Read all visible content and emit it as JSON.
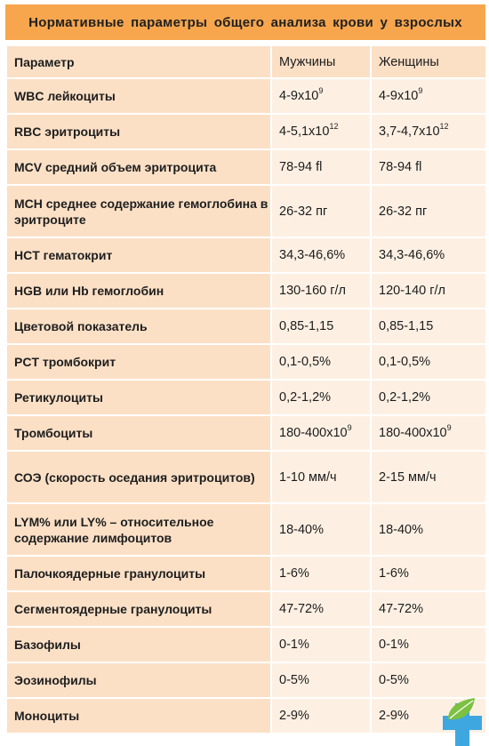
{
  "title": "Нормативные  параметры  общего анализа  крови  у взрослых",
  "headers": {
    "param": "Параметр",
    "men": "Мужчины",
    "women": "Женщины"
  },
  "rows": [
    {
      "param": "WBC лейкоциты",
      "men": "4-9x10",
      "men_sup": "9",
      "women": "4-9x10",
      "women_sup": "9"
    },
    {
      "param": "RBC эритроциты",
      "men": "4-5,1x10",
      "men_sup": "12",
      "women": "3,7-4,7x10",
      "women_sup": "12"
    },
    {
      "param": "MCV средний  объем эритроцита",
      "men": "78-94 fl",
      "men_sup": "",
      "women": "78-94 fl",
      "women_sup": ""
    },
    {
      "param": "MCH среднее  содержание гемоглобина  в эритроците",
      "men": "26-32 пг",
      "men_sup": "",
      "women": "26-32 пг",
      "women_sup": ""
    },
    {
      "param": "HCT гематокрит",
      "men": "34,3-46,6%",
      "men_sup": "",
      "women": "34,3-46,6%",
      "women_sup": ""
    },
    {
      "param": "HGB или Hb гемоглобин",
      "men": "130-160  г/л",
      "men_sup": "",
      "women": "120-140  г/л",
      "women_sup": ""
    },
    {
      "param": "Цветовой показатель",
      "men": "0,85-1,15",
      "men_sup": "",
      "women": "0,85-1,15",
      "women_sup": ""
    },
    {
      "param": "PCT тромбокрит",
      "men": "0,1-0,5%",
      "men_sup": "",
      "women": "0,1-0,5%",
      "women_sup": ""
    },
    {
      "param": "Ретикулоциты",
      "men": "0,2-1,2%",
      "men_sup": "",
      "women": "0,2-1,2%",
      "women_sup": ""
    },
    {
      "param": "Тромбоциты",
      "men": "180-400x10",
      "men_sup": "9",
      "women": "180-400x10",
      "women_sup": "9"
    },
    {
      "param": "СОЭ  (скорость  оседания эритроцитов)",
      "men": "1-10  мм/ч",
      "men_sup": "",
      "women": "2-15  мм/ч",
      "women_sup": ""
    },
    {
      "param": "LYM%  или  LY%  –  относительное содержание  лимфоцитов",
      "men": "18-40%",
      "men_sup": "",
      "women": "18-40%",
      "women_sup": ""
    },
    {
      "param": "Палочкоядерные  гранулоциты",
      "men": "1-6%",
      "men_sup": "",
      "women": "1-6%",
      "women_sup": ""
    },
    {
      "param": "Сегментоядерные  гранулоциты",
      "men": "47-72%",
      "men_sup": "",
      "women": "47-72%",
      "women_sup": ""
    },
    {
      "param": "Базофилы",
      "men": "0-1%",
      "men_sup": "",
      "women": "0-1%",
      "women_sup": ""
    },
    {
      "param": "Эозинофилы",
      "men": "0-5%",
      "men_sup": "",
      "women": "0-5%",
      "women_sup": ""
    },
    {
      "param": "Моноциты",
      "men": "2-9%",
      "men_sup": "",
      "women": "2-9%",
      "women_sup": ""
    }
  ],
  "colors": {
    "title_bg": "#f7a64e",
    "param_bg": "#fbe0c6",
    "value_bg": "#fdf0e3",
    "logo_blue": "#3fa7e0",
    "logo_green": "#7cc142"
  },
  "logo_icon": "medical-cross-leaf-icon"
}
